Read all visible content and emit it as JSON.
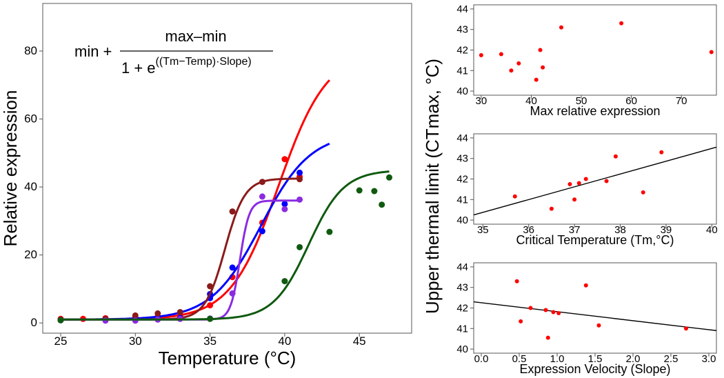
{
  "figure_ylabel": "Upper thermal limit (CTmax, °C)",
  "equation": {
    "prefix": "min + ",
    "numerator": "max–min",
    "denominator_base": "1 + e",
    "denominator_exponent": "((Tm−Temp)·Slope)"
  },
  "chart_data": [
    {
      "id": "main",
      "type": "scatter",
      "title": "",
      "xlabel": "Temperature (°C)",
      "ylabel": "Relative expression",
      "xlim": [
        23.8,
        48.5
      ],
      "ylim": [
        -3,
        94
      ],
      "xticks": [
        25,
        30,
        35,
        40,
        45
      ],
      "yticks": [
        0,
        20,
        40,
        60,
        80
      ],
      "grid": false,
      "series": [
        {
          "color": "#ff0000",
          "points": [
            [
              25,
              1.2
            ],
            [
              26.5,
              1.2
            ],
            [
              28,
              1.4
            ],
            [
              30,
              1.6
            ],
            [
              31.5,
              1.8
            ],
            [
              33,
              2.0
            ],
            [
              35,
              5.2
            ],
            [
              36.5,
              13.5
            ],
            [
              38.5,
              29.5
            ],
            [
              40,
              48.2
            ],
            [
              41,
              43.0
            ]
          ],
          "curve": {
            "min": 1.0,
            "max": 80,
            "tm": 39.6,
            "slope": 0.62,
            "x_range": [
              25,
              43
            ]
          }
        },
        {
          "color": "#0000ff",
          "points": [
            [
              25,
              0.9
            ],
            [
              28,
              1.0
            ],
            [
              30,
              1.1
            ],
            [
              31.5,
              1.2
            ],
            [
              33,
              1.5
            ],
            [
              35,
              8.5
            ],
            [
              35,
              7.3
            ],
            [
              36.5,
              16.3
            ],
            [
              38.5,
              27.0
            ],
            [
              40,
              35.0
            ],
            [
              41,
              44.2
            ]
          ],
          "curve": {
            "min": 1.0,
            "max": 56,
            "tm": 38.4,
            "slope": 0.6,
            "x_range": [
              25,
              43
            ]
          }
        },
        {
          "color": "#8b1a1a",
          "points": [
            [
              25,
              1.0
            ],
            [
              28,
              1.2
            ],
            [
              30,
              2.2
            ],
            [
              31.5,
              2.8
            ],
            [
              33,
              3.2
            ],
            [
              35,
              10.8
            ],
            [
              36.5,
              32.8
            ],
            [
              38.5,
              41.5
            ],
            [
              41,
              42.3
            ]
          ],
          "curve": {
            "min": 1.0,
            "max": 42.5,
            "tm": 36.0,
            "slope": 1.5,
            "x_range": [
              25,
              41
            ]
          }
        },
        {
          "color": "#8a2be2",
          "points": [
            [
              25,
              0.8
            ],
            [
              28,
              0.7
            ],
            [
              30,
              0.7
            ],
            [
              31.5,
              1.0
            ],
            [
              33,
              1.2
            ],
            [
              35,
              1.3
            ],
            [
              36.5,
              8.7
            ],
            [
              38.5,
              37.2
            ],
            [
              40,
              33.5
            ],
            [
              41,
              36.3
            ]
          ],
          "curve": {
            "min": 1.0,
            "max": 36,
            "tm": 37.0,
            "slope": 3.2,
            "x_range": [
              25,
              41
            ]
          }
        },
        {
          "color": "#0f5a0f",
          "points": [
            [
              25,
              0.8
            ],
            [
              35,
              1.2
            ],
            [
              40,
              12.3
            ],
            [
              41,
              22.3
            ],
            [
              43,
              26.8
            ],
            [
              45,
              39.0
            ],
            [
              46,
              38.8
            ],
            [
              46.5,
              34.8
            ],
            [
              47,
              42.8
            ]
          ],
          "curve": {
            "min": 1.0,
            "max": 45,
            "tm": 41.6,
            "slope": 0.85,
            "x_range": [
              25,
              47
            ]
          }
        }
      ]
    },
    {
      "id": "max",
      "type": "scatter",
      "title": "",
      "xlabel": "Max relative expression",
      "ylabel": "",
      "xlim": [
        28.5,
        77
      ],
      "ylim": [
        39.8,
        44.2
      ],
      "xticks": [
        30,
        40,
        50,
        60,
        70
      ],
      "yticks": [
        40,
        41,
        42,
        43,
        44
      ],
      "grid": false,
      "point_color": "#ff0000",
      "points": [
        [
          30,
          41.75
        ],
        [
          34,
          41.8
        ],
        [
          36,
          41.0
        ],
        [
          37.5,
          41.35
        ],
        [
          41,
          40.55
        ],
        [
          41.8,
          42.0
        ],
        [
          42.3,
          41.15
        ],
        [
          46,
          43.1
        ],
        [
          58,
          43.3
        ],
        [
          76,
          41.9
        ]
      ],
      "trend": null
    },
    {
      "id": "tm",
      "type": "scatter",
      "title": "",
      "xlabel": "Critical Temperature (Tm,°C)",
      "ylabel": "",
      "xlim": [
        34.8,
        40.1
      ],
      "ylim": [
        39.8,
        44.2
      ],
      "xticks": [
        35,
        36,
        37,
        38,
        39,
        40
      ],
      "yticks": [
        40,
        41,
        42,
        43,
        44
      ],
      "grid": false,
      "point_color": "#ff0000",
      "points": [
        [
          35.7,
          41.15
        ],
        [
          36.5,
          40.55
        ],
        [
          36.9,
          41.75
        ],
        [
          37.0,
          41.0
        ],
        [
          37.1,
          41.8
        ],
        [
          37.25,
          42.0
        ],
        [
          37.7,
          41.9
        ],
        [
          37.9,
          43.1
        ],
        [
          38.5,
          41.35
        ],
        [
          38.9,
          43.3
        ]
      ],
      "trend": {
        "x": [
          34.8,
          40.1
        ],
        "y": [
          40.25,
          43.55
        ]
      }
    },
    {
      "id": "slope",
      "type": "scatter",
      "title": "",
      "xlabel": "Expression Velocity (Slope)",
      "ylabel": "",
      "xlim": [
        -0.1,
        3.1
      ],
      "ylim": [
        39.8,
        44.2
      ],
      "xticks": [
        "0.0",
        "0.5",
        "1.0",
        "1.5",
        "2.0",
        "2.5",
        "3.0"
      ],
      "yticks": [
        40,
        41,
        42,
        43,
        44
      ],
      "grid": false,
      "point_color": "#ff0000",
      "points": [
        [
          0.47,
          43.3
        ],
        [
          0.52,
          41.35
        ],
        [
          0.65,
          42.0
        ],
        [
          0.85,
          41.9
        ],
        [
          0.88,
          40.55
        ],
        [
          0.95,
          41.8
        ],
        [
          1.02,
          41.75
        ],
        [
          1.38,
          43.1
        ],
        [
          1.55,
          41.15
        ],
        [
          2.7,
          41.0
        ]
      ],
      "trend": {
        "x": [
          -0.1,
          3.1
        ],
        "y": [
          42.3,
          40.9
        ]
      }
    }
  ]
}
